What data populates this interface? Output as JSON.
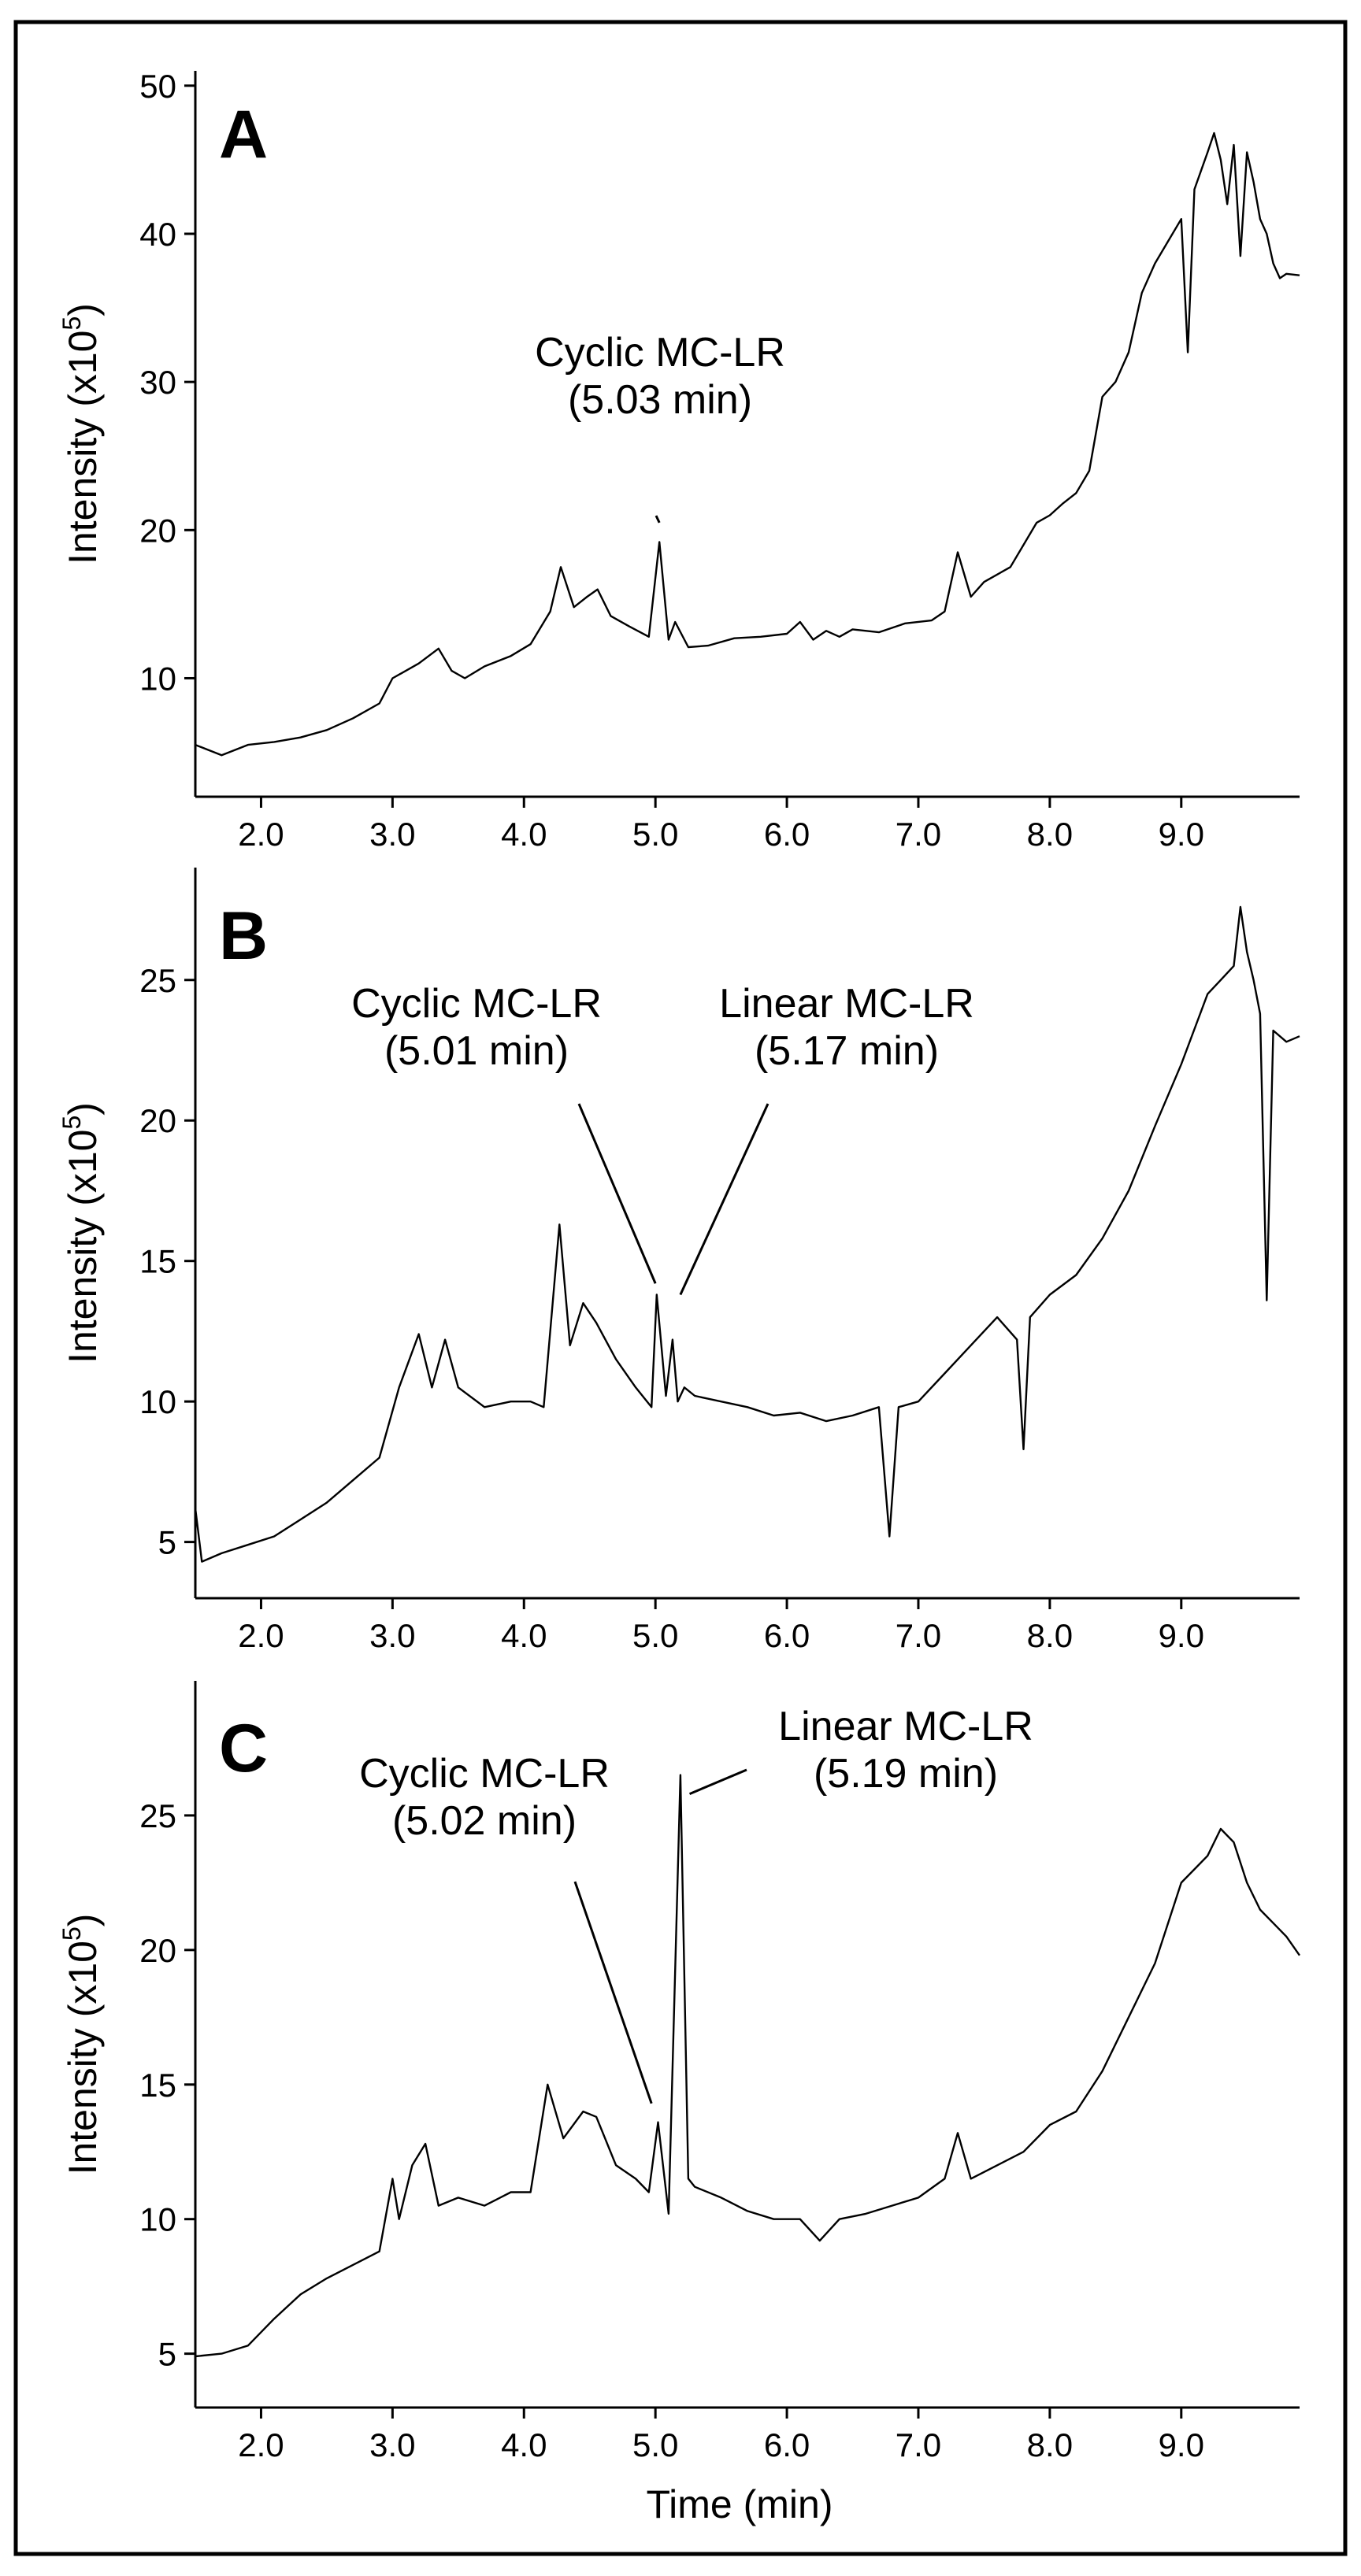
{
  "chart_data": [
    {
      "type": "line",
      "panel_label": "A",
      "ylabel_main": "Intensity (x10",
      "ylabel_sup": "5",
      "ylabel_close": ")",
      "xlim": [
        1.5,
        9.9
      ],
      "ylim": [
        2,
        51
      ],
      "x_ticks": [
        2.0,
        3.0,
        4.0,
        5.0,
        6.0,
        7.0,
        8.0,
        9.0
      ],
      "x_tick_labels": [
        "2.0",
        "3.0",
        "4.0",
        "5.0",
        "6.0",
        "7.0",
        "8.0",
        "9.0"
      ],
      "y_ticks": [
        10,
        20,
        30,
        40,
        50
      ],
      "y_tick_labels": [
        "10",
        "20",
        "30",
        "40",
        "50"
      ],
      "series": [
        {
          "name": "chromatogram",
          "x": [
            1.5,
            1.7,
            1.9,
            2.1,
            2.3,
            2.5,
            2.7,
            2.9,
            3.0,
            3.2,
            3.35,
            3.45,
            3.55,
            3.7,
            3.9,
            4.05,
            4.2,
            4.28,
            4.38,
            4.48,
            4.56,
            4.66,
            4.8,
            4.95,
            5.03,
            5.1,
            5.15,
            5.25,
            5.4,
            5.6,
            5.8,
            6.0,
            6.1,
            6.2,
            6.3,
            6.4,
            6.5,
            6.7,
            6.9,
            7.1,
            7.2,
            7.3,
            7.4,
            7.5,
            7.7,
            7.8,
            7.9,
            8.0,
            8.1,
            8.2,
            8.3,
            8.4,
            8.5,
            8.6,
            8.7,
            8.8,
            8.9,
            9.0,
            9.05,
            9.1,
            9.2,
            9.25,
            9.3,
            9.35,
            9.4,
            9.45,
            9.5,
            9.55,
            9.6,
            9.65,
            9.7,
            9.75,
            9.8,
            9.9
          ],
          "y": [
            5.5,
            4.8,
            5.5,
            5.7,
            6.0,
            6.5,
            7.3,
            8.3,
            10.0,
            11.0,
            12.0,
            10.5,
            10.0,
            10.8,
            11.5,
            12.3,
            14.5,
            17.5,
            14.8,
            15.5,
            16.0,
            14.2,
            13.5,
            12.8,
            19.2,
            12.6,
            13.8,
            12.1,
            12.2,
            12.7,
            12.8,
            13.0,
            13.8,
            12.6,
            13.2,
            12.8,
            13.3,
            13.1,
            13.7,
            13.9,
            14.5,
            18.5,
            15.5,
            16.5,
            17.5,
            19.0,
            20.5,
            21.0,
            21.8,
            22.5,
            24.0,
            29.0,
            30.0,
            32.0,
            36.0,
            38.0,
            39.5,
            41.0,
            32.0,
            43.0,
            45.5,
            46.8,
            45.0,
            42.0,
            46.0,
            38.5,
            45.5,
            43.5,
            41.0,
            40.0,
            38.0,
            37.0,
            37.3,
            37.2
          ]
        }
      ],
      "annotations": [
        {
          "lines": [
            "Cyclic MC-LR",
            "(5.03 min)"
          ],
          "target_x": 5.03,
          "target_y": 20.5
        }
      ]
    },
    {
      "type": "line",
      "panel_label": "B",
      "ylabel_main": "Intensity (x10",
      "ylabel_sup": "5",
      "ylabel_close": ")",
      "xlim": [
        1.5,
        9.9
      ],
      "ylim": [
        3,
        29
      ],
      "x_ticks": [
        2.0,
        3.0,
        4.0,
        5.0,
        6.0,
        7.0,
        8.0,
        9.0
      ],
      "x_tick_labels": [
        "2.0",
        "3.0",
        "4.0",
        "5.0",
        "6.0",
        "7.0",
        "8.0",
        "9.0"
      ],
      "y_ticks": [
        5,
        10,
        15,
        20,
        25
      ],
      "y_tick_labels": [
        "5",
        "10",
        "15",
        "20",
        "25"
      ],
      "series": [
        {
          "name": "chromatogram",
          "x": [
            1.5,
            1.55,
            1.7,
            1.9,
            2.1,
            2.3,
            2.5,
            2.7,
            2.9,
            3.05,
            3.2,
            3.3,
            3.4,
            3.5,
            3.7,
            3.9,
            4.05,
            4.15,
            4.27,
            4.35,
            4.45,
            4.55,
            4.7,
            4.85,
            4.97,
            5.01,
            5.08,
            5.13,
            5.17,
            5.22,
            5.3,
            5.5,
            5.7,
            5.9,
            6.1,
            6.3,
            6.5,
            6.7,
            6.78,
            6.85,
            7.0,
            7.2,
            7.4,
            7.6,
            7.75,
            7.8,
            7.85,
            8.0,
            8.2,
            8.4,
            8.6,
            8.8,
            9.0,
            9.2,
            9.3,
            9.4,
            9.45,
            9.5,
            9.55,
            9.6,
            9.65,
            9.7,
            9.8,
            9.9
          ],
          "y": [
            6.2,
            4.3,
            4.6,
            4.9,
            5.2,
            5.8,
            6.4,
            7.2,
            8.0,
            10.5,
            12.4,
            10.5,
            12.2,
            10.5,
            9.8,
            10.0,
            10.0,
            9.8,
            16.3,
            12.0,
            13.5,
            12.8,
            11.5,
            10.5,
            9.8,
            13.8,
            10.2,
            12.2,
            10.0,
            10.5,
            10.2,
            10.0,
            9.8,
            9.5,
            9.6,
            9.3,
            9.5,
            9.8,
            5.2,
            9.8,
            10.0,
            11.0,
            12.0,
            13.0,
            12.2,
            8.3,
            13.0,
            13.8,
            14.5,
            15.8,
            17.5,
            19.8,
            22.0,
            24.5,
            25.0,
            25.5,
            27.6,
            26.0,
            25.0,
            23.8,
            13.6,
            23.2,
            22.8,
            23.0
          ]
        }
      ],
      "annotations": [
        {
          "lines": [
            "Cyclic MC-LR",
            "(5.01 min)"
          ],
          "target_x": 5.0,
          "target_y": 14.2
        },
        {
          "lines": [
            "Linear MC-LR",
            "(5.17 min)"
          ],
          "target_x": 5.19,
          "target_y": 13.8
        }
      ]
    },
    {
      "type": "line",
      "panel_label": "C",
      "xlabel": "Time (min)",
      "ylabel_main": "Intensity (x10",
      "ylabel_sup": "5",
      "ylabel_close": ")",
      "xlim": [
        1.5,
        9.9
      ],
      "ylim": [
        3,
        30
      ],
      "x_ticks": [
        2.0,
        3.0,
        4.0,
        5.0,
        6.0,
        7.0,
        8.0,
        9.0
      ],
      "x_tick_labels": [
        "2.0",
        "3.0",
        "4.0",
        "5.0",
        "6.0",
        "7.0",
        "8.0",
        "9.0"
      ],
      "y_ticks": [
        5,
        10,
        15,
        20,
        25
      ],
      "y_tick_labels": [
        "5",
        "10",
        "15",
        "20",
        "25"
      ],
      "series": [
        {
          "name": "chromatogram",
          "x": [
            1.5,
            1.7,
            1.9,
            2.1,
            2.3,
            2.5,
            2.7,
            2.9,
            3.0,
            3.05,
            3.15,
            3.25,
            3.35,
            3.5,
            3.7,
            3.9,
            4.05,
            4.18,
            4.3,
            4.45,
            4.55,
            4.7,
            4.85,
            4.95,
            5.02,
            5.1,
            5.19,
            5.25,
            5.3,
            5.5,
            5.7,
            5.9,
            6.1,
            6.25,
            6.4,
            6.6,
            6.8,
            7.0,
            7.2,
            7.3,
            7.4,
            7.6,
            7.8,
            8.0,
            8.2,
            8.4,
            8.6,
            8.8,
            9.0,
            9.2,
            9.3,
            9.4,
            9.5,
            9.6,
            9.7,
            9.8,
            9.9
          ],
          "y": [
            4.9,
            5.0,
            5.3,
            6.3,
            7.2,
            7.8,
            8.3,
            8.8,
            11.5,
            10.0,
            12.0,
            12.8,
            10.5,
            10.8,
            10.5,
            11.0,
            11.0,
            15.0,
            13.0,
            14.0,
            13.8,
            12.0,
            11.5,
            11.0,
            13.6,
            10.2,
            26.5,
            11.5,
            11.2,
            10.8,
            10.3,
            10.0,
            10.0,
            9.2,
            10.0,
            10.2,
            10.5,
            10.8,
            11.5,
            13.2,
            11.5,
            12.0,
            12.5,
            13.5,
            14.0,
            15.5,
            17.5,
            19.5,
            22.5,
            23.5,
            24.5,
            24.0,
            22.5,
            21.5,
            21.0,
            20.5,
            19.8
          ]
        }
      ],
      "annotations": [
        {
          "lines": [
            "Cyclic MC-LR",
            "(5.02 min)"
          ],
          "target_x": 4.97,
          "target_y": 14.3
        },
        {
          "lines": [
            "Linear MC-LR",
            "(5.19 min)"
          ],
          "target_x": 5.26,
          "target_y": 25.8
        }
      ]
    }
  ]
}
